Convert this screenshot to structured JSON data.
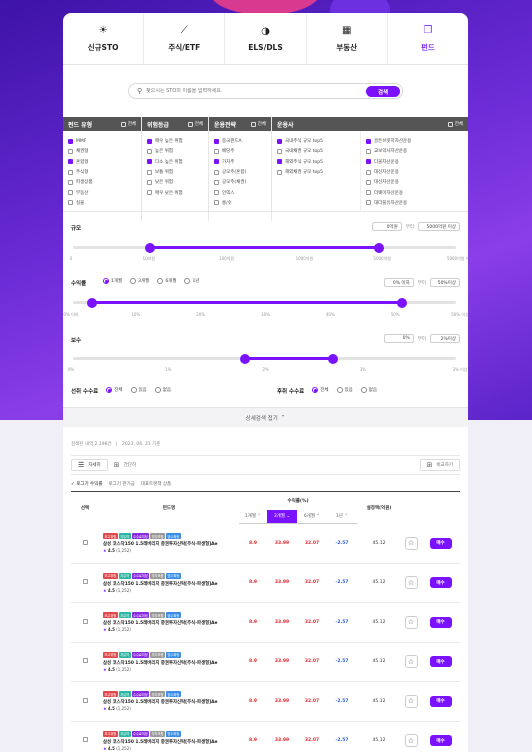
{
  "nav": [
    {
      "label": "신규STO",
      "icon": "lightbulb-icon",
      "glyph": "☀"
    },
    {
      "label": "주식/ETF",
      "icon": "trend-line-icon",
      "glyph": "⟋"
    },
    {
      "label": "ELS/DLS",
      "icon": "pie-chart-icon",
      "glyph": "◑"
    },
    {
      "label": "부동산",
      "icon": "building-icon",
      "glyph": "▦"
    },
    {
      "label": "펀드",
      "icon": "document-stack-icon",
      "glyph": "❐"
    }
  ],
  "search": {
    "placeholder": "찾으시는 STO의 이름을 입력하세요.",
    "button": "검색",
    "icon": "search-icon"
  },
  "filters": {
    "all_label": "전체",
    "columns": [
      {
        "title": "펀드 유형",
        "items": [
          {
            "label": "MMF",
            "checked": true
          },
          {
            "label": "채권형",
            "checked": false
          },
          {
            "label": "혼합형",
            "checked": true
          },
          {
            "label": "주식형",
            "checked": false
          },
          {
            "label": "파생상품",
            "checked": false
          },
          {
            "label": "부동산",
            "checked": false
          },
          {
            "label": "실물",
            "checked": false
          }
        ]
      },
      {
        "title": "위험등급",
        "items": [
          {
            "label": "매우 높은 위험",
            "checked": true
          },
          {
            "label": "높은 위험",
            "checked": false
          },
          {
            "label": "다소 높은 위험",
            "checked": true
          },
          {
            "label": "보통 위험",
            "checked": false
          },
          {
            "label": "낮은 위험",
            "checked": false
          },
          {
            "label": "매우 낮은 위험",
            "checked": false
          }
        ]
      },
      {
        "title": "운용전략",
        "items": [
          {
            "label": "중국펀드A",
            "checked": true
          },
          {
            "label": "배당주",
            "checked": false
          },
          {
            "label": "가치주",
            "checked": true
          },
          {
            "label": "공모주(혼합)",
            "checked": false
          },
          {
            "label": "공모주(채권)",
            "checked": false
          },
          {
            "label": "인덱스",
            "checked": false
          },
          {
            "label": "롱/숏",
            "checked": false
          }
        ]
      },
      {
        "title": "운용사",
        "items": [
          {
            "label": "국내주식 규모 top5",
            "checked": true
          },
          {
            "label": "국내채권 규모 top5",
            "checked": false
          },
          {
            "label": "해외주식 규모 top5",
            "checked": true
          },
          {
            "label": "해외채권 규모 top5",
            "checked": false
          }
        ],
        "items2": [
          {
            "label": "골든브릿지자산운용",
            "checked": true
          },
          {
            "label": "교보악사자산운용",
            "checked": false
          },
          {
            "label": "다올자산운용",
            "checked": true
          },
          {
            "label": "대신자산운용",
            "checked": false
          },
          {
            "label": "대신자산운용",
            "checked": false
          },
          {
            "label": "더웨이자산운용",
            "checked": false
          },
          {
            "label": "대더블유자산운용",
            "checked": false
          }
        ]
      }
    ]
  },
  "size": {
    "title": "규모",
    "min": "0억원",
    "sep": "부터",
    "max": "5000억원 이상",
    "low_pct": 0.2,
    "high_pct": 0.8,
    "ticks": [
      "0",
      "10억원",
      "100억원",
      "1000억원",
      "5000억원",
      "5000억원 이상"
    ]
  },
  "returns": {
    "title": "수익률",
    "periods": [
      "1개월",
      "3개월",
      "6개월",
      "1년"
    ],
    "selected": 0,
    "min": "0% 이하",
    "sep": "부터",
    "max": "50%이상",
    "low_pct": 0.05,
    "high_pct": 0.86,
    "ticks": [
      "0% 이하",
      "10%",
      "20%",
      "30%",
      "40%",
      "50%",
      "50% 이상"
    ]
  },
  "fee": {
    "title": "보수",
    "min": "0%",
    "sep": "부터",
    "max": "2%이상",
    "low_pct": 0.45,
    "high_pct": 0.68,
    "ticks": [
      "0%",
      "1%",
      "2%",
      "3%",
      "3% 이상"
    ]
  },
  "front_fee": {
    "title": "선취 수수료",
    "options": [
      "전체",
      "있음",
      "없음"
    ],
    "selected": 0
  },
  "back_fee": {
    "title": "후취 수수료",
    "options": [
      "전체",
      "있음",
      "없음"
    ],
    "selected": 0
  },
  "collapse_label": "상세검색 접기",
  "meta": {
    "count": "검색된 내역 2,198건",
    "date": "2023. 04. 31 기준"
  },
  "toolbar": {
    "detail_view": "자세히",
    "simple_view": "간단히",
    "compare": "비교하기"
  },
  "sort": {
    "active": "로그기 수익률",
    "options": [
      "로그기 펀기금",
      "대표트랜잭 상품"
    ]
  },
  "table": {
    "col_select": "선택",
    "col_fund": "펀드명",
    "col_returns": "수익률(%)",
    "col_nav": "설정액(억원)",
    "periods": [
      "1개월",
      "3개월",
      "6개월",
      "1년"
    ],
    "period_on": 1,
    "rows": [
      {
        "tags": [
          "조고위험",
          "자유약",
          "수수료미정",
          "부자포함",
          "방수확정"
        ],
        "name": "삼성 코스닥150 1.5레버리지 증권투자신탁[주식-파생형]Ae",
        "rating": "4.5",
        "reviews": "(1,252)",
        "r1": "8.9",
        "r3": "33.99",
        "r6": "32.07",
        "r12": "-2.57",
        "nav": "45.12",
        "buy": "매수"
      },
      {
        "tags": [
          "조고위험",
          "자유약",
          "수수료미정",
          "부자포함",
          "방수확정"
        ],
        "name": "삼성 코스닥150 1.5레버리지 증권투자신탁[주식-파생형]Ae",
        "rating": "4.5",
        "reviews": "(1,252)",
        "r1": "8.9",
        "r3": "33.99",
        "r6": "32.07",
        "r12": "-2.57",
        "nav": "45.12",
        "buy": "매수"
      },
      {
        "tags": [
          "조고위험",
          "자유약",
          "수수료미정",
          "부자포함",
          "방수확정"
        ],
        "name": "삼성 코스닥150 1.5레버리지 증권투자신탁[주식-파생형]Ae",
        "rating": "4.5",
        "reviews": "(1,252)",
        "r1": "8.9",
        "r3": "33.99",
        "r6": "32.07",
        "r12": "-2.57",
        "nav": "45.12",
        "buy": "매수"
      },
      {
        "tags": [
          "조고위험",
          "자유약",
          "수수료미정",
          "부자포함",
          "방수확정"
        ],
        "name": "삼성 코스닥150 1.5레버리지 증권투자신탁[주식-파생형]Ae",
        "rating": "4.5",
        "reviews": "(1,252)",
        "r1": "8.9",
        "r3": "33.99",
        "r6": "32.07",
        "r12": "-2.57",
        "nav": "45.12",
        "buy": "매수"
      },
      {
        "tags": [
          "조고위험",
          "자유약",
          "수수료미정",
          "부자포함",
          "방수확정"
        ],
        "name": "삼성 코스닥150 1.5레버리지 증권투자신탁[주식-파생형]Ae",
        "rating": "4.5",
        "reviews": "(1,252)",
        "r1": "8.9",
        "r3": "33.99",
        "r6": "32.07",
        "r12": "-2.57",
        "nav": "45.12",
        "buy": "매수"
      },
      {
        "tags": [
          "조고위험",
          "자유약",
          "수수료미정",
          "부자포함",
          "방수확정"
        ],
        "name": "삼성 코스닥150 1.5레버리지 증권투자신탁[주식-파생형]Ae",
        "rating": "4.5",
        "reviews": "(1,252)",
        "r1": "8.9",
        "r3": "33.99",
        "r6": "32.07",
        "r12": "-2.57",
        "nav": "45.12",
        "buy": "매수"
      }
    ]
  },
  "colors": {
    "accent": "#7a12ff",
    "tags": [
      "#e0494c",
      "#2bb6a3",
      "#8a2be2",
      "#9a9a9a",
      "#3a8ee6"
    ]
  }
}
